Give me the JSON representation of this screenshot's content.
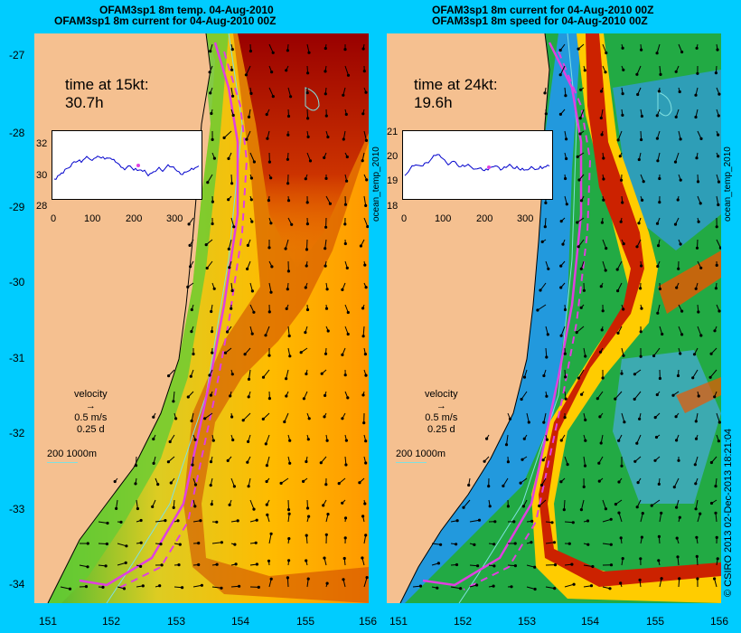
{
  "left_panel": {
    "title_line1": "OFAM3sp1 8m temp. 04-Aug-2010",
    "title_line2": "OFAM3sp1 8m current for 04-Aug-2010 00Z",
    "time_label": "time at 15kt:",
    "time_value": "30.7h",
    "inset": {
      "yticks": [
        "32",
        "30",
        "28"
      ],
      "xticks": [
        "0",
        "100",
        "200",
        "300"
      ]
    },
    "side_label": "ocean_temp_2010"
  },
  "right_panel": {
    "title_line1": "OFAM3sp1 8m current for 04-Aug-2010 00Z",
    "title_line2": "OFAM3sp1 8m speed for 04-Aug-2010 00Z",
    "time_label": "time at 24kt:",
    "time_value": "19.6h",
    "inset": {
      "yticks": [
        "21",
        "20",
        "19",
        "18"
      ],
      "xticks": [
        "0",
        "100",
        "200",
        "300"
      ]
    },
    "side_label": "ocean_temp_2010"
  },
  "legend": {
    "line1": "velocity",
    "line2": "0.5 m/s",
    "line3": "0.25 d"
  },
  "contour_legend": "200  1000m",
  "y_ticks": [
    "-27",
    "-28",
    "-29",
    "-30",
    "-31",
    "-32",
    "-33",
    "-34"
  ],
  "x_ticks": [
    "151",
    "152",
    "153",
    "154",
    "155",
    "156"
  ],
  "credit": "© CSIRO 2013   02-Dec-2013 18:21:04",
  "colors": {
    "background": "#00ccff",
    "land": "#f5c090",
    "route": "#e040e0",
    "inset_line": "#0000cc",
    "contour": "#80e0e0"
  }
}
